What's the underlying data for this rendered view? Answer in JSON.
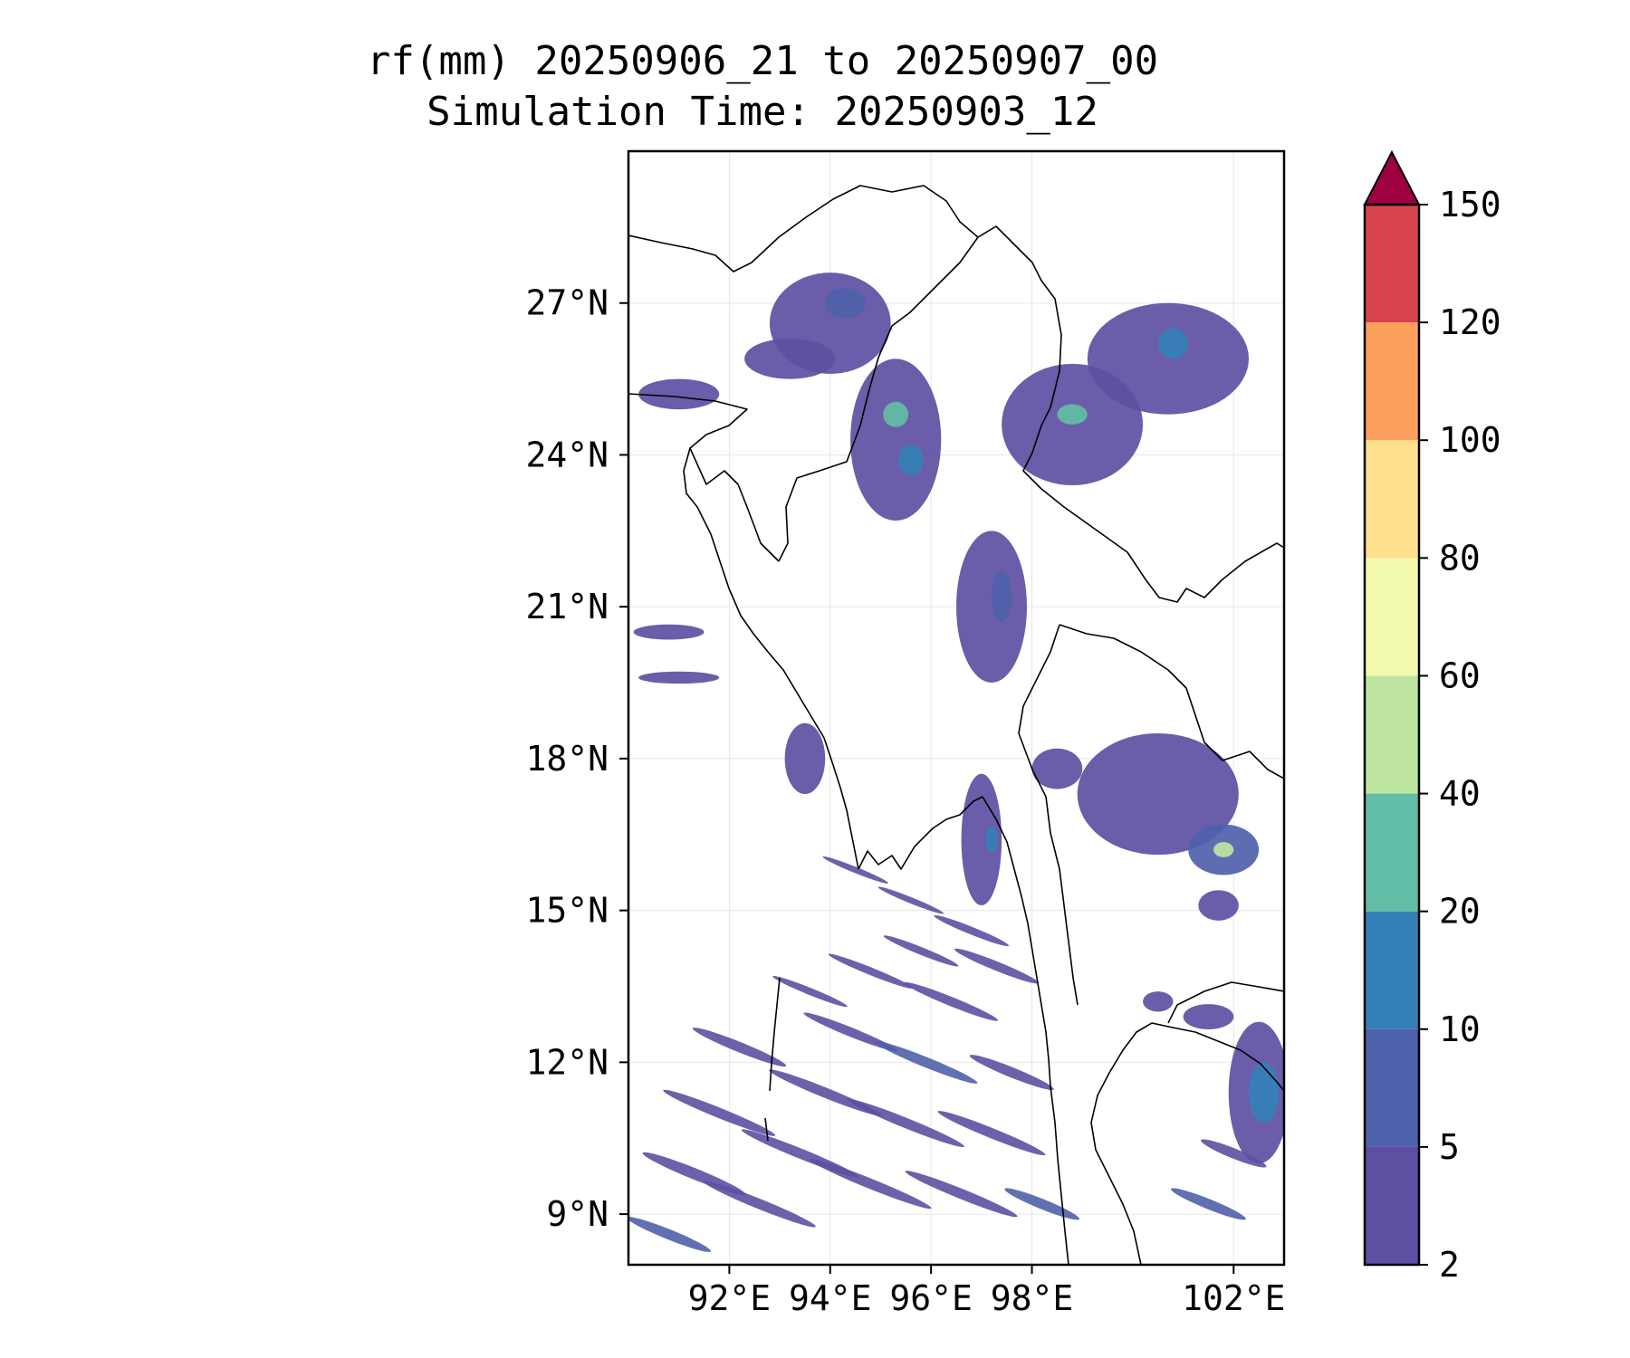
{
  "title": {
    "line1": "rf(mm) 20250906_21 to 20250907_00",
    "line2": "Simulation Time: 20250903_12"
  },
  "map": {
    "lon_range": [
      90.0,
      103.0
    ],
    "lat_range": [
      8.0,
      30.0
    ],
    "gridlines": true,
    "lat_ticks": [
      {
        "value": 27,
        "label": "27°N"
      },
      {
        "value": 24,
        "label": "24°N"
      },
      {
        "value": 21,
        "label": "21°N"
      },
      {
        "value": 18,
        "label": "18°N"
      },
      {
        "value": 15,
        "label": "15°N"
      },
      {
        "value": 12,
        "label": "12°N"
      },
      {
        "value": 9,
        "label": "9°N"
      }
    ],
    "lon_ticks": [
      {
        "value": 92,
        "label": "92°E"
      },
      {
        "value": 94,
        "label": "94°E"
      },
      {
        "value": 96,
        "label": "96°E"
      },
      {
        "value": 98,
        "label": "98°E"
      },
      {
        "value": 102,
        "label": "102°E"
      }
    ],
    "rain_cells": [
      {
        "lon": 94.0,
        "lat": 26.6,
        "rlon": 1.2,
        "rlat": 1.0,
        "level": 0
      },
      {
        "lon": 94.3,
        "lat": 27.0,
        "rlon": 0.4,
        "rlat": 0.3,
        "level": 1
      },
      {
        "lon": 93.2,
        "lat": 25.9,
        "rlon": 0.9,
        "rlat": 0.4,
        "level": 0
      },
      {
        "lon": 95.3,
        "lat": 24.3,
        "rlon": 0.9,
        "rlat": 1.6,
        "level": 0
      },
      {
        "lon": 95.3,
        "lat": 24.8,
        "rlon": 0.25,
        "rlat": 0.25,
        "level": 3
      },
      {
        "lon": 95.6,
        "lat": 23.9,
        "rlon": 0.25,
        "rlat": 0.3,
        "level": 2
      },
      {
        "lon": 98.8,
        "lat": 24.6,
        "rlon": 1.4,
        "rlat": 1.2,
        "level": 0
      },
      {
        "lon": 98.8,
        "lat": 24.8,
        "rlon": 0.3,
        "rlat": 0.2,
        "level": 3
      },
      {
        "lon": 100.7,
        "lat": 25.9,
        "rlon": 1.6,
        "rlat": 1.1,
        "level": 0
      },
      {
        "lon": 100.8,
        "lat": 26.2,
        "rlon": 0.3,
        "rlat": 0.3,
        "level": 2
      },
      {
        "lon": 97.2,
        "lat": 21.0,
        "rlon": 0.7,
        "rlat": 1.5,
        "level": 0
      },
      {
        "lon": 97.4,
        "lat": 21.2,
        "rlon": 0.2,
        "rlat": 0.5,
        "level": 1
      },
      {
        "lon": 97.0,
        "lat": 16.4,
        "rlon": 0.4,
        "rlat": 1.3,
        "level": 0
      },
      {
        "lon": 97.2,
        "lat": 16.4,
        "rlon": 0.12,
        "rlat": 0.25,
        "level": 2
      },
      {
        "lon": 100.5,
        "lat": 17.3,
        "rlon": 1.6,
        "rlat": 1.2,
        "level": 0
      },
      {
        "lon": 101.8,
        "lat": 16.2,
        "rlon": 0.7,
        "rlat": 0.5,
        "level": 1
      },
      {
        "lon": 101.8,
        "lat": 16.2,
        "rlon": 0.2,
        "rlat": 0.15,
        "level": 4
      },
      {
        "lon": 101.7,
        "lat": 15.1,
        "rlon": 0.4,
        "rlat": 0.3,
        "level": 0
      },
      {
        "lon": 102.5,
        "lat": 11.4,
        "rlon": 0.6,
        "rlat": 1.4,
        "level": 0
      },
      {
        "lon": 102.6,
        "lat": 11.4,
        "rlon": 0.3,
        "rlat": 0.6,
        "level": 2
      },
      {
        "lon": 91.0,
        "lat": 25.2,
        "rlon": 0.8,
        "rlat": 0.3,
        "level": 0
      },
      {
        "lon": 90.8,
        "lat": 20.5,
        "rlon": 0.7,
        "rlat": 0.15,
        "level": 0
      },
      {
        "lon": 91.0,
        "lat": 19.6,
        "rlon": 0.8,
        "rlat": 0.12,
        "level": 0
      },
      {
        "lon": 93.5,
        "lat": 18.0,
        "rlon": 0.4,
        "rlat": 0.7,
        "level": 0
      },
      {
        "lon": 98.5,
        "lat": 17.8,
        "rlon": 0.5,
        "rlat": 0.4,
        "level": 0
      },
      {
        "lon": 101.5,
        "lat": 12.9,
        "rlon": 0.5,
        "rlat": 0.25,
        "level": 0
      },
      {
        "lon": 100.5,
        "lat": 13.2,
        "rlon": 0.3,
        "rlat": 0.2,
        "level": 0
      }
    ],
    "rain_streaks": [
      {
        "lon": 91.3,
        "lat": 9.8,
        "len": 2.2,
        "width": 0.22,
        "level": 0
      },
      {
        "lon": 91.8,
        "lat": 11.0,
        "len": 2.4,
        "width": 0.2,
        "level": 0
      },
      {
        "lon": 92.2,
        "lat": 12.3,
        "len": 2.0,
        "width": 0.2,
        "level": 0
      },
      {
        "lon": 92.6,
        "lat": 9.2,
        "len": 2.4,
        "width": 0.2,
        "level": 0
      },
      {
        "lon": 93.4,
        "lat": 10.2,
        "len": 2.5,
        "width": 0.2,
        "level": 0
      },
      {
        "lon": 93.9,
        "lat": 11.4,
        "len": 2.4,
        "width": 0.2,
        "level": 0
      },
      {
        "lon": 94.4,
        "lat": 12.6,
        "len": 2.0,
        "width": 0.18,
        "level": 0
      },
      {
        "lon": 94.8,
        "lat": 9.6,
        "len": 2.6,
        "width": 0.2,
        "level": 0
      },
      {
        "lon": 95.5,
        "lat": 10.8,
        "len": 2.5,
        "width": 0.2,
        "level": 0
      },
      {
        "lon": 95.9,
        "lat": 12.0,
        "len": 2.2,
        "width": 0.2,
        "level": 1
      },
      {
        "lon": 96.4,
        "lat": 13.2,
        "len": 2.0,
        "width": 0.18,
        "level": 0
      },
      {
        "lon": 96.6,
        "lat": 9.4,
        "len": 2.4,
        "width": 0.2,
        "level": 0
      },
      {
        "lon": 97.2,
        "lat": 10.6,
        "len": 2.3,
        "width": 0.2,
        "level": 0
      },
      {
        "lon": 97.6,
        "lat": 11.8,
        "len": 1.8,
        "width": 0.2,
        "level": 0
      },
      {
        "lon": 97.3,
        "lat": 13.9,
        "len": 1.8,
        "width": 0.18,
        "level": 0
      },
      {
        "lon": 96.8,
        "lat": 14.6,
        "len": 1.6,
        "width": 0.15,
        "level": 0
      },
      {
        "lon": 95.8,
        "lat": 14.2,
        "len": 1.6,
        "width": 0.15,
        "level": 0
      },
      {
        "lon": 94.8,
        "lat": 13.8,
        "len": 1.8,
        "width": 0.15,
        "level": 0
      },
      {
        "lon": 93.6,
        "lat": 13.4,
        "len": 1.6,
        "width": 0.14,
        "level": 0
      },
      {
        "lon": 90.8,
        "lat": 8.6,
        "len": 1.8,
        "width": 0.2,
        "level": 1
      },
      {
        "lon": 94.5,
        "lat": 15.8,
        "len": 1.4,
        "width": 0.12,
        "level": 0
      },
      {
        "lon": 95.6,
        "lat": 15.2,
        "len": 1.4,
        "width": 0.12,
        "level": 0
      },
      {
        "lon": 98.2,
        "lat": 9.2,
        "len": 1.6,
        "width": 0.2,
        "level": 1
      },
      {
        "lon": 101.5,
        "lat": 9.2,
        "len": 1.6,
        "width": 0.2,
        "level": 1
      },
      {
        "lon": 102.0,
        "lat": 10.2,
        "len": 1.4,
        "width": 0.2,
        "level": 0
      }
    ]
  },
  "colorbar": {
    "levels": [
      2,
      5,
      10,
      20,
      40,
      60,
      80,
      100,
      120,
      150
    ],
    "tick_labels": [
      "2",
      "5",
      "10",
      "20",
      "40",
      "60",
      "80",
      "100",
      "120",
      "150"
    ],
    "colors": [
      "#5e4fa2",
      "#4f61aa",
      "#3580b9",
      "#62bea6",
      "#bee5a0",
      "#f3faad",
      "#fedf8b",
      "#fca05e",
      "#d8434e"
    ],
    "extend_color": "#9e0142"
  },
  "style": {
    "land_outline": "#000000",
    "grid_color": "#e6e6e6"
  }
}
